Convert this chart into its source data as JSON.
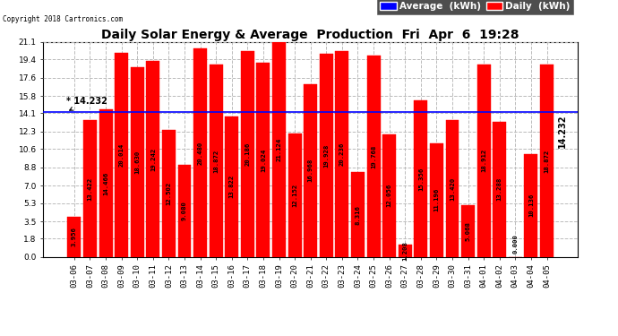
{
  "title": "Daily Solar Energy & Average  Production  Fri  Apr  6  19:28",
  "copyright": "Copyright 2018 Cartronics.com",
  "average_value": 14.232,
  "categories": [
    "03-06",
    "03-07",
    "03-08",
    "03-09",
    "03-10",
    "03-11",
    "03-12",
    "03-13",
    "03-14",
    "03-15",
    "03-16",
    "03-17",
    "03-18",
    "03-19",
    "03-20",
    "03-21",
    "03-22",
    "03-23",
    "03-24",
    "03-25",
    "03-26",
    "03-27",
    "03-28",
    "03-29",
    "03-30",
    "03-31",
    "04-01",
    "04-02",
    "04-03",
    "04-04",
    "04-05"
  ],
  "values": [
    3.956,
    13.422,
    14.466,
    20.014,
    18.63,
    19.242,
    12.502,
    9.08,
    20.48,
    18.872,
    13.822,
    20.186,
    19.024,
    21.124,
    12.152,
    16.968,
    19.928,
    20.236,
    8.316,
    19.768,
    12.056,
    1.208,
    15.356,
    11.196,
    13.42,
    5.068,
    18.912,
    13.288,
    0.0,
    10.136,
    18.872
  ],
  "bar_color": "#FF0000",
  "avg_line_color": "#0000FF",
  "background_color": "#FFFFFF",
  "grid_color": "#BBBBBB",
  "ylim": [
    0,
    21.1
  ],
  "yticks": [
    0.0,
    1.8,
    3.5,
    5.3,
    7.0,
    8.8,
    10.6,
    12.3,
    14.1,
    15.8,
    17.6,
    19.4,
    21.1
  ],
  "title_fontsize": 10,
  "tick_fontsize": 6.5,
  "bar_label_fontsize": 5.2,
  "avg_fontsize": 7,
  "legend_fontsize": 7.5
}
